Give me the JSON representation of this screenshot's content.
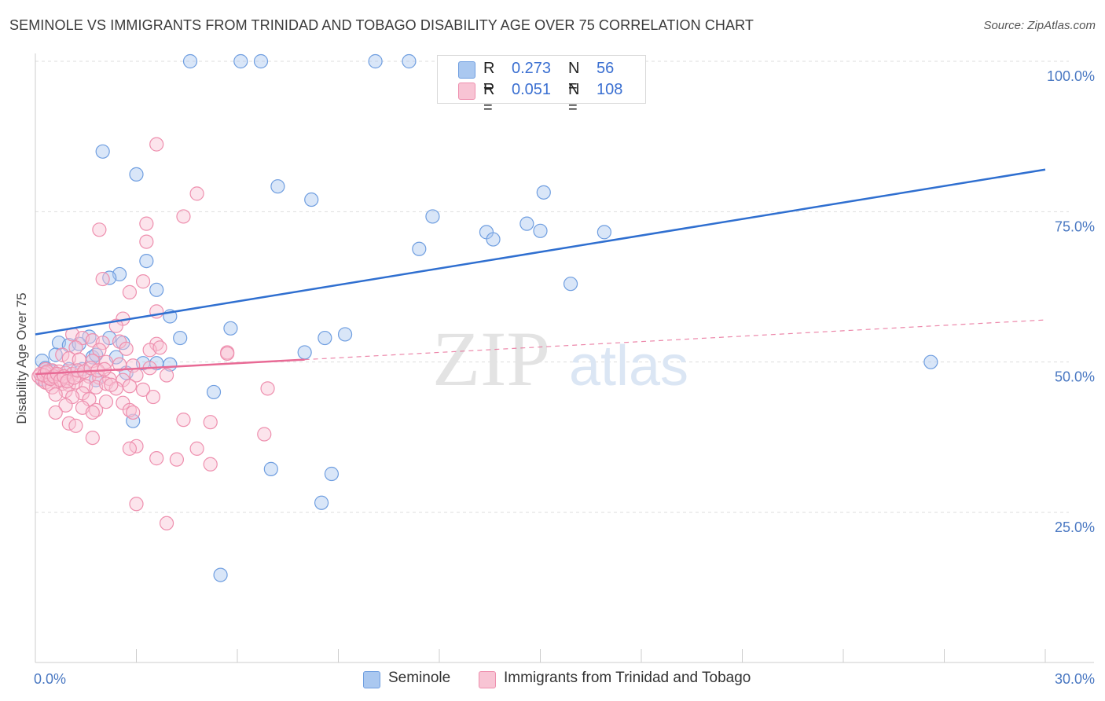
{
  "title": "SEMINOLE VS IMMIGRANTS FROM TRINIDAD AND TOBAGO DISABILITY AGE OVER 75 CORRELATION CHART",
  "source": "Source: ZipAtlas.com",
  "watermark": {
    "zip": "ZIP",
    "atlas": "atlas"
  },
  "legend": {
    "rows": [
      {
        "r_label": "R =",
        "r_value": "0.273",
        "n_label": "N =",
        "n_value": "56",
        "color": "#aac8f0",
        "border": "#6f9ee0"
      },
      {
        "r_label": "R =",
        "r_value": "0.051",
        "n_label": "N =",
        "n_value": "108",
        "color": "#f8c4d4",
        "border": "#ee8fae"
      }
    ]
  },
  "bottom_legend": {
    "items": [
      {
        "label": "Seminole",
        "color": "#aac8f0",
        "border": "#6f9ee0"
      },
      {
        "label": "Immigrants from Trinidad and Tobago",
        "color": "#f8c4d4",
        "border": "#ee8fae"
      }
    ]
  },
  "chart_data": {
    "type": "scatter",
    "ylabel": "Disability Age Over 75",
    "xlim": [
      0,
      30
    ],
    "ylim": [
      4,
      102
    ],
    "x_ticks": [
      {
        "value": 0,
        "label": "0.0%"
      },
      {
        "value": 30,
        "label": "30.0%"
      }
    ],
    "y_ticks": [
      {
        "value": 25,
        "label": "25.0%"
      },
      {
        "value": 50,
        "label": "50.0%"
      },
      {
        "value": 75,
        "label": "75.0%"
      },
      {
        "value": 100,
        "label": "100.0%"
      }
    ],
    "y_gridlines": [
      25,
      50,
      75,
      100
    ],
    "series": [
      {
        "name": "Seminole",
        "color": "#6f9ee0",
        "fill": "#aac8f0",
        "trend": {
          "x0": 0,
          "y0": 54.6,
          "x1": 30,
          "y1": 82.0
        },
        "points": [
          [
            4.6,
            100
          ],
          [
            6.1,
            100
          ],
          [
            6.7,
            100
          ],
          [
            10.1,
            100
          ],
          [
            11.1,
            100
          ],
          [
            2.0,
            85.0
          ],
          [
            3.0,
            81.2
          ],
          [
            7.2,
            79.2
          ],
          [
            8.2,
            77.0
          ],
          [
            15.1,
            78.2
          ],
          [
            11.8,
            74.2
          ],
          [
            14.6,
            73.0
          ],
          [
            13.4,
            71.6
          ],
          [
            15.0,
            71.8
          ],
          [
            16.9,
            71.6
          ],
          [
            13.6,
            70.4
          ],
          [
            11.4,
            68.8
          ],
          [
            3.3,
            66.8
          ],
          [
            2.5,
            64.6
          ],
          [
            2.2,
            64.0
          ],
          [
            15.9,
            63.0
          ],
          [
            3.6,
            62.0
          ],
          [
            4.0,
            57.6
          ],
          [
            5.8,
            55.6
          ],
          [
            9.2,
            54.6
          ],
          [
            8.6,
            54.0
          ],
          [
            4.3,
            54.0
          ],
          [
            2.2,
            54.0
          ],
          [
            1.6,
            54.2
          ],
          [
            0.7,
            53.2
          ],
          [
            1.0,
            52.8
          ],
          [
            1.3,
            53.0
          ],
          [
            2.6,
            53.2
          ],
          [
            8.0,
            51.6
          ],
          [
            0.6,
            51.2
          ],
          [
            1.7,
            50.8
          ],
          [
            1.8,
            51.2
          ],
          [
            2.4,
            50.8
          ],
          [
            0.2,
            50.2
          ],
          [
            3.2,
            49.8
          ],
          [
            3.6,
            49.8
          ],
          [
            4.0,
            49.6
          ],
          [
            26.6,
            50.0
          ],
          [
            0.3,
            49.0
          ],
          [
            0.5,
            48.4
          ],
          [
            1.0,
            48.8
          ],
          [
            1.4,
            48.8
          ],
          [
            2.7,
            48.2
          ],
          [
            1.8,
            47.0
          ],
          [
            0.2,
            47.2
          ],
          [
            5.3,
            45.0
          ],
          [
            2.9,
            40.2
          ],
          [
            7.0,
            32.2
          ],
          [
            8.8,
            31.4
          ],
          [
            8.5,
            26.6
          ],
          [
            5.5,
            14.6
          ]
        ]
      },
      {
        "name": "Immigrants from Trinidad and Tobago",
        "color": "#ee8fae",
        "fill": "#f8c4d4",
        "trend": {
          "x0": 0,
          "y0": 48.0,
          "x1": 30,
          "y1": 57.0,
          "solid_until": 8.0
        },
        "points": [
          [
            3.6,
            86.2
          ],
          [
            4.8,
            78.0
          ],
          [
            4.4,
            74.2
          ],
          [
            3.3,
            73.0
          ],
          [
            1.9,
            72.0
          ],
          [
            3.3,
            70.0
          ],
          [
            2.0,
            63.8
          ],
          [
            3.2,
            63.4
          ],
          [
            2.8,
            61.6
          ],
          [
            3.6,
            58.4
          ],
          [
            2.6,
            57.2
          ],
          [
            2.4,
            56.0
          ],
          [
            1.1,
            54.6
          ],
          [
            1.4,
            54.0
          ],
          [
            1.7,
            53.6
          ],
          [
            2.0,
            53.2
          ],
          [
            2.5,
            53.4
          ],
          [
            3.6,
            53.0
          ],
          [
            1.2,
            52.4
          ],
          [
            1.9,
            52.0
          ],
          [
            2.7,
            52.2
          ],
          [
            3.4,
            52.0
          ],
          [
            3.7,
            52.4
          ],
          [
            5.7,
            51.6
          ],
          [
            0.8,
            51.2
          ],
          [
            1.0,
            50.6
          ],
          [
            1.3,
            50.4
          ],
          [
            1.7,
            50.2
          ],
          [
            2.1,
            50.0
          ],
          [
            2.5,
            49.6
          ],
          [
            2.9,
            49.4
          ],
          [
            3.4,
            49.0
          ],
          [
            0.3,
            48.8
          ],
          [
            0.5,
            48.6
          ],
          [
            0.7,
            48.4
          ],
          [
            0.9,
            48.2
          ],
          [
            1.1,
            48.0
          ],
          [
            1.3,
            47.8
          ],
          [
            1.6,
            47.6
          ],
          [
            1.9,
            47.4
          ],
          [
            2.2,
            47.2
          ],
          [
            2.6,
            47.0
          ],
          [
            3.0,
            47.8
          ],
          [
            3.9,
            47.8
          ],
          [
            0.1,
            47.6
          ],
          [
            0.2,
            47.0
          ],
          [
            0.3,
            46.6
          ],
          [
            0.4,
            46.4
          ],
          [
            0.6,
            46.8
          ],
          [
            0.8,
            46.4
          ],
          [
            1.0,
            46.2
          ],
          [
            1.2,
            46.6
          ],
          [
            1.5,
            46.0
          ],
          [
            1.8,
            45.8
          ],
          [
            2.1,
            46.4
          ],
          [
            2.4,
            45.6
          ],
          [
            2.8,
            46.0
          ],
          [
            3.2,
            45.4
          ],
          [
            0.5,
            45.8
          ],
          [
            0.9,
            45.2
          ],
          [
            1.4,
            44.8
          ],
          [
            6.9,
            45.6
          ],
          [
            0.6,
            44.6
          ],
          [
            1.1,
            44.2
          ],
          [
            1.6,
            43.8
          ],
          [
            2.1,
            43.4
          ],
          [
            2.6,
            43.2
          ],
          [
            3.5,
            44.2
          ],
          [
            0.9,
            42.8
          ],
          [
            1.4,
            42.4
          ],
          [
            1.8,
            42.0
          ],
          [
            2.8,
            42.0
          ],
          [
            0.6,
            41.6
          ],
          [
            1.7,
            41.6
          ],
          [
            2.9,
            41.6
          ],
          [
            4.4,
            40.4
          ],
          [
            5.2,
            40.0
          ],
          [
            1.0,
            39.8
          ],
          [
            1.2,
            39.4
          ],
          [
            6.8,
            38.0
          ],
          [
            1.7,
            37.4
          ],
          [
            3.0,
            36.0
          ],
          [
            2.8,
            35.6
          ],
          [
            4.8,
            35.6
          ],
          [
            3.6,
            34.0
          ],
          [
            4.2,
            33.8
          ],
          [
            5.2,
            33.0
          ],
          [
            3.0,
            26.4
          ],
          [
            3.9,
            23.2
          ],
          [
            0.3,
            48.2
          ],
          [
            0.4,
            47.4
          ],
          [
            0.15,
            48.0
          ],
          [
            0.25,
            47.8
          ],
          [
            0.35,
            48.4
          ],
          [
            0.45,
            47.2
          ],
          [
            0.55,
            47.6
          ],
          [
            0.65,
            48.0
          ],
          [
            0.75,
            47.0
          ],
          [
            0.85,
            47.6
          ],
          [
            0.95,
            46.8
          ],
          [
            1.15,
            47.4
          ],
          [
            1.25,
            48.6
          ],
          [
            1.45,
            48.4
          ],
          [
            1.65,
            49.0
          ],
          [
            1.85,
            48.6
          ],
          [
            2.05,
            48.8
          ],
          [
            5.7,
            51.4
          ],
          [
            2.25,
            46.2
          ]
        ]
      }
    ]
  }
}
